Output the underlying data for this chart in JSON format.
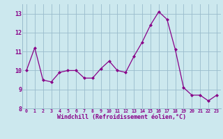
{
  "x": [
    0,
    1,
    2,
    3,
    4,
    5,
    6,
    7,
    8,
    9,
    10,
    11,
    12,
    13,
    14,
    15,
    16,
    17,
    18,
    19,
    20,
    21,
    22,
    23
  ],
  "y": [
    10.0,
    11.2,
    9.5,
    9.4,
    9.9,
    10.0,
    10.0,
    9.6,
    9.6,
    10.1,
    10.5,
    10.0,
    9.9,
    10.75,
    11.5,
    12.4,
    13.1,
    12.7,
    11.1,
    9.1,
    8.7,
    8.7,
    8.4,
    8.7
  ],
  "xlabel": "Windchill (Refroidissement éolien,°C)",
  "xlim": [
    -0.5,
    23.5
  ],
  "ylim": [
    8,
    13.5
  ],
  "yticks": [
    8,
    9,
    10,
    11,
    12,
    13
  ],
  "xticks": [
    0,
    1,
    2,
    3,
    4,
    5,
    6,
    7,
    8,
    9,
    10,
    11,
    12,
    13,
    14,
    15,
    16,
    17,
    18,
    19,
    20,
    21,
    22,
    23
  ],
  "line_color": "#880088",
  "marker_color": "#880088",
  "bg_color": "#cce8ee",
  "grid_color": "#99bbcc",
  "tick_color": "#880088",
  "label_color": "#880088"
}
